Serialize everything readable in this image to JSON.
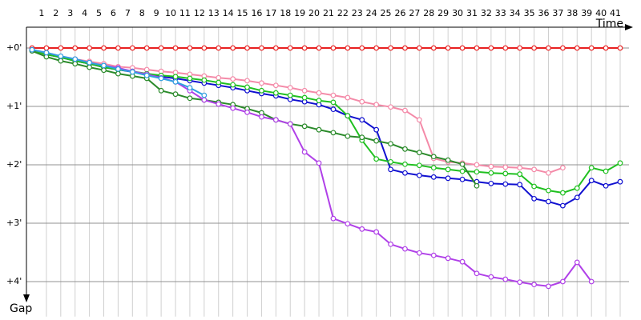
{
  "chart_data": {
    "type": "line",
    "x_label": "Time",
    "y_label": "Gap",
    "x": [
      0,
      1,
      2,
      3,
      4,
      5,
      6,
      7,
      8,
      9,
      10,
      11,
      12,
      13,
      14,
      15,
      16,
      17,
      18,
      19,
      20,
      21,
      22,
      23,
      24,
      25,
      26,
      27,
      28,
      29,
      30,
      31,
      32,
      33,
      34,
      35,
      36,
      37,
      38,
      39,
      40,
      41
    ],
    "xlim": [
      0,
      41
    ],
    "xticks": [
      1,
      2,
      3,
      4,
      5,
      6,
      7,
      8,
      9,
      10,
      11,
      12,
      13,
      14,
      15,
      16,
      17,
      18,
      19,
      20,
      21,
      22,
      23,
      24,
      25,
      26,
      27,
      28,
      29,
      30,
      31,
      32,
      33,
      34,
      35,
      36,
      37,
      38,
      39,
      40,
      41
    ],
    "ylim": [
      -0.35,
      4.6
    ],
    "yticks": [
      {
        "value": 0,
        "label": "+0'"
      },
      {
        "value": 1,
        "label": "+1'"
      },
      {
        "value": 2,
        "label": "+2'"
      },
      {
        "value": 3,
        "label": "+3'"
      },
      {
        "value": 4,
        "label": "+4'"
      }
    ],
    "grid": true,
    "y_inverted": true,
    "series": [
      {
        "color": "#e82020",
        "values": [
          0,
          0,
          0,
          0,
          0,
          0,
          0,
          0,
          0,
          0,
          0,
          0,
          0,
          0,
          0,
          0,
          0,
          0,
          0,
          0,
          0,
          0,
          0,
          0,
          0,
          0,
          0,
          0,
          0,
          0,
          0,
          0,
          0,
          0,
          0,
          0,
          0,
          0,
          0,
          0,
          0,
          0
        ]
      },
      {
        "color": "#f48aa8",
        "values": [
          0.03,
          0.1,
          0.15,
          0.19,
          0.23,
          0.27,
          0.32,
          0.34,
          0.37,
          0.4,
          0.42,
          0.45,
          0.48,
          0.51,
          0.53,
          0.56,
          0.6,
          0.64,
          0.68,
          0.73,
          0.77,
          0.81,
          0.85,
          0.92,
          0.97,
          1.01,
          1.07,
          1.23,
          1.89,
          1.95,
          1.97,
          2.0,
          2.03,
          2.04,
          2.05,
          2.08,
          2.14,
          2.05,
          null,
          null,
          null,
          null
        ]
      },
      {
        "color": "#1010d0",
        "values": [
          0.04,
          0.11,
          0.16,
          0.22,
          0.27,
          0.33,
          0.37,
          0.41,
          0.45,
          0.49,
          0.52,
          0.56,
          0.6,
          0.64,
          0.68,
          0.73,
          0.78,
          0.82,
          0.88,
          0.92,
          0.97,
          1.05,
          1.16,
          1.23,
          1.4,
          2.08,
          2.14,
          2.18,
          2.21,
          2.23,
          2.25,
          2.29,
          2.32,
          2.33,
          2.34,
          2.58,
          2.63,
          2.7,
          2.56,
          2.27,
          2.36,
          2.29
        ]
      },
      {
        "color": "#20c020",
        "values": [
          0.04,
          0.11,
          0.16,
          0.22,
          0.27,
          0.33,
          0.37,
          0.4,
          0.44,
          0.47,
          0.49,
          0.52,
          0.55,
          0.59,
          0.63,
          0.67,
          0.73,
          0.77,
          0.81,
          0.85,
          0.9,
          0.93,
          1.16,
          1.58,
          1.9,
          1.95,
          1.99,
          2.01,
          2.05,
          2.08,
          2.11,
          2.12,
          2.14,
          2.15,
          2.16,
          2.37,
          2.44,
          2.48,
          2.4,
          2.05,
          2.11,
          1.97
        ]
      },
      {
        "color": "#2a8a2a",
        "values": [
          0.05,
          0.15,
          0.22,
          0.27,
          0.33,
          0.38,
          0.44,
          0.48,
          0.52,
          0.73,
          0.79,
          0.86,
          0.89,
          0.93,
          0.97,
          1.04,
          1.11,
          1.23,
          1.3,
          1.34,
          1.4,
          1.45,
          1.51,
          1.53,
          1.59,
          1.64,
          1.73,
          1.79,
          1.86,
          1.92,
          1.99,
          2.36,
          null,
          null,
          null,
          null,
          null,
          null,
          null,
          null,
          null,
          null
        ]
      },
      {
        "color": "#b040e8",
        "values": [
          0.03,
          0.08,
          0.14,
          0.19,
          0.25,
          0.3,
          0.34,
          0.4,
          0.45,
          0.51,
          0.58,
          0.73,
          0.89,
          0.96,
          1.03,
          1.1,
          1.18,
          1.23,
          1.3,
          1.78,
          1.97,
          2.92,
          3.01,
          3.1,
          3.15,
          3.36,
          3.44,
          3.51,
          3.55,
          3.6,
          3.66,
          3.86,
          3.92,
          3.96,
          4.01,
          4.05,
          4.08,
          4.0,
          3.67,
          4.0,
          null,
          null
        ]
      },
      {
        "color": "#30a0e0",
        "values": [
          0.03,
          0.08,
          0.14,
          0.19,
          0.25,
          0.3,
          0.36,
          0.41,
          0.47,
          0.52,
          0.58,
          0.68,
          0.81,
          null,
          null,
          null,
          null,
          null,
          null,
          null,
          null,
          null,
          null,
          null,
          null,
          null,
          null,
          null,
          null,
          null,
          null,
          null,
          null,
          null,
          null,
          null,
          null,
          null,
          null,
          null,
          null,
          null
        ]
      }
    ]
  }
}
